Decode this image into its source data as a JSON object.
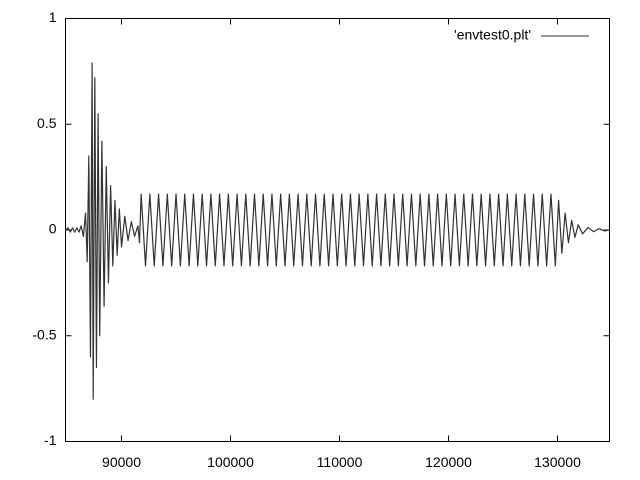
{
  "chart_data": {
    "type": "line",
    "x": [
      84860,
      85100,
      85300,
      85500,
      85700,
      85900,
      86100,
      86300,
      86500,
      86700,
      86850,
      87000,
      87150,
      87300,
      87400,
      87550,
      87700,
      87850,
      88000,
      88200,
      88400,
      88600,
      88800,
      89000,
      89200,
      89400,
      89600,
      89800,
      90000,
      90300,
      90600,
      90900,
      91200,
      91500,
      91650,
      91800,
      92200,
      92600,
      93000,
      93400,
      93800,
      94200,
      94600,
      95000,
      95400,
      95800,
      96200,
      96600,
      97000,
      97400,
      97800,
      98200,
      98600,
      99000,
      99400,
      99800,
      100200,
      100600,
      101000,
      101400,
      101800,
      102200,
      102600,
      103000,
      103400,
      103800,
      104200,
      104600,
      105000,
      105400,
      105800,
      106200,
      106600,
      107000,
      107400,
      107800,
      108200,
      108600,
      109000,
      109400,
      109800,
      110200,
      110600,
      111000,
      111400,
      111800,
      112200,
      112600,
      113000,
      113400,
      113800,
      114200,
      114600,
      115000,
      115400,
      115800,
      116200,
      116600,
      117000,
      117400,
      117800,
      118200,
      118600,
      119000,
      119400,
      119800,
      120200,
      120600,
      121000,
      121400,
      121800,
      122200,
      122600,
      123000,
      123400,
      123800,
      124200,
      124600,
      125000,
      125400,
      125800,
      126200,
      126600,
      127000,
      127400,
      127800,
      128200,
      128600,
      129000,
      129400,
      129800,
      130100,
      130400,
      130700,
      131000,
      131300,
      131600,
      131900,
      132300,
      132800,
      133300,
      133800,
      134300,
      134770
    ],
    "series": [
      {
        "name": "'envtest0.plt'",
        "color": "#333333",
        "values": [
          0,
          0.01,
          -0.01,
          0.01,
          -0.01,
          0.01,
          -0.01,
          0.02,
          -0.03,
          0.08,
          -0.15,
          0.35,
          -0.6,
          0.79,
          -0.8,
          0.72,
          -0.65,
          0.55,
          -0.5,
          0.42,
          -0.36,
          0.3,
          -0.25,
          0.21,
          -0.17,
          0.14,
          -0.12,
          0.1,
          -0.08,
          0.065,
          -0.05,
          0.04,
          -0.03,
          0.02,
          -0.06,
          0.17,
          -0.17,
          0.17,
          -0.17,
          0.17,
          -0.17,
          0.17,
          -0.17,
          0.17,
          -0.17,
          0.17,
          -0.17,
          0.17,
          -0.17,
          0.17,
          -0.17,
          0.17,
          -0.17,
          0.17,
          -0.17,
          0.17,
          -0.17,
          0.17,
          -0.17,
          0.17,
          -0.17,
          0.17,
          -0.17,
          0.17,
          -0.17,
          0.17,
          -0.17,
          0.17,
          -0.17,
          0.17,
          -0.17,
          0.17,
          -0.17,
          0.17,
          -0.17,
          0.17,
          -0.17,
          0.17,
          -0.17,
          0.17,
          -0.17,
          0.17,
          -0.17,
          0.17,
          -0.17,
          0.17,
          -0.17,
          0.17,
          -0.17,
          0.17,
          -0.17,
          0.17,
          -0.17,
          0.17,
          -0.17,
          0.17,
          -0.17,
          0.17,
          -0.17,
          0.17,
          -0.17,
          0.17,
          -0.17,
          0.17,
          -0.17,
          0.17,
          -0.17,
          0.17,
          -0.17,
          0.17,
          -0.17,
          0.17,
          -0.17,
          0.17,
          -0.17,
          0.17,
          -0.17,
          0.17,
          -0.17,
          0.17,
          -0.17,
          0.17,
          -0.17,
          0.17,
          -0.17,
          0.17,
          -0.17,
          0.17,
          -0.17,
          0.17,
          -0.17,
          0.14,
          -0.11,
          0.08,
          -0.06,
          0.045,
          -0.035,
          0.025,
          -0.018,
          0.012,
          -0.008,
          0.006,
          -0.004,
          0
        ]
      }
    ],
    "xlim": [
      84860,
      134770
    ],
    "xticks": [
      90000,
      100000,
      110000,
      120000,
      130000
    ],
    "ylim": [
      -1,
      1
    ],
    "yticks": [
      -1,
      -0.5,
      0,
      0.5,
      1
    ],
    "legend": "top-right"
  }
}
